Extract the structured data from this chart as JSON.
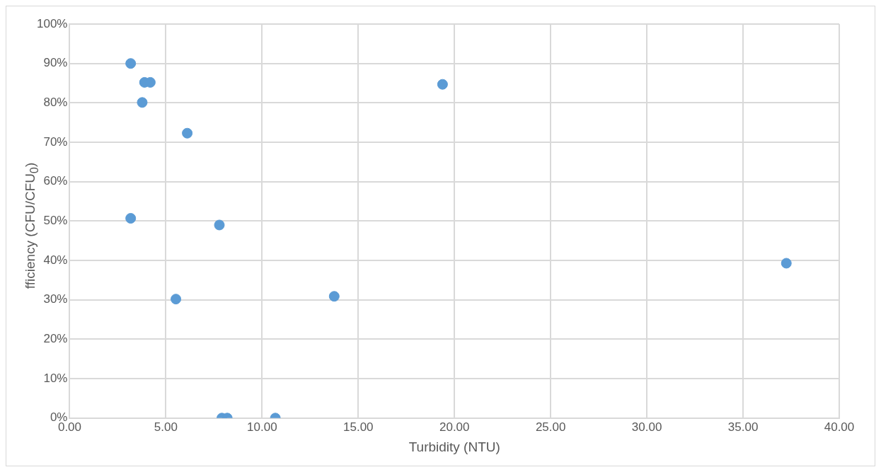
{
  "chart_data": {
    "type": "scatter",
    "xlabel": "Turbidity (NTU)",
    "ylabel": "fficiency (CFU/CFU$_{0}$)",
    "x": [
      3.17,
      3.89,
      4.19,
      3.77,
      6.11,
      3.17,
      7.78,
      5.52,
      13.75,
      7.91,
      8.19,
      10.69,
      19.38,
      37.25
    ],
    "series": [
      {
        "color": "#5b9bd5",
        "values": [
          90,
          85.2,
          85.2,
          80.1,
          72.3,
          50.7,
          49,
          30.2,
          30.9,
          0,
          0,
          0,
          84.7,
          39.3
        ]
      }
    ],
    "xlim": [
      0,
      40
    ],
    "xticks": [
      {
        "value": 0,
        "label": "0.00"
      },
      {
        "value": 5,
        "label": "5.00"
      },
      {
        "value": 10,
        "label": "10.00"
      },
      {
        "value": 15,
        "label": "15.00"
      },
      {
        "value": 20,
        "label": "20.00"
      },
      {
        "value": 25,
        "label": "25.00"
      },
      {
        "value": 30,
        "label": "30.00"
      },
      {
        "value": 35,
        "label": "35.00"
      },
      {
        "value": 40,
        "label": "40.00"
      }
    ],
    "ylim": [
      0,
      100
    ],
    "yticks": [
      {
        "value": 0,
        "label": "0%"
      },
      {
        "value": 10,
        "label": "10%"
      },
      {
        "value": 20,
        "label": "20%"
      },
      {
        "value": 30,
        "label": "30%"
      },
      {
        "value": 40,
        "label": "40%"
      },
      {
        "value": 50,
        "label": "50%"
      },
      {
        "value": 60,
        "label": "60%"
      },
      {
        "value": 70,
        "label": "70%"
      },
      {
        "value": 80,
        "label": "80%"
      },
      {
        "value": 90,
        "label": "90%"
      },
      {
        "value": 100,
        "label": "100%"
      }
    ],
    "grid": true,
    "marker": "circle",
    "legend": false
  }
}
